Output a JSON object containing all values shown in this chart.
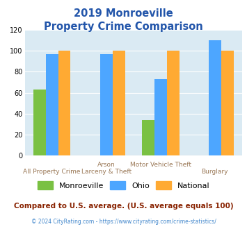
{
  "title_line1": "2019 Monroeville",
  "title_line2": "Property Crime Comparison",
  "category_labels_top": [
    "",
    "Arson",
    "Motor Vehicle Theft",
    ""
  ],
  "category_labels_bottom": [
    "All Property Crime",
    "Larceny & Theft",
    "",
    "Burglary"
  ],
  "monroeville": [
    63,
    0,
    34,
    0
  ],
  "ohio": [
    97,
    97,
    73,
    110
  ],
  "national": [
    100,
    100,
    100,
    100
  ],
  "monroeville_color": "#7ac143",
  "ohio_color": "#4da6ff",
  "national_color": "#ffaa33",
  "bg_color": "#daeaf3",
  "ylim": [
    0,
    120
  ],
  "yticks": [
    0,
    20,
    40,
    60,
    80,
    100,
    120
  ],
  "legend_labels": [
    "Monroeville",
    "Ohio",
    "National"
  ],
  "footer_line1": "Compared to U.S. average. (U.S. average equals 100)",
  "footer_line2": "© 2024 CityRating.com - https://www.cityrating.com/crime-statistics/",
  "title_color": "#2255aa",
  "xlabel_color": "#997755",
  "footer1_color": "#882200",
  "footer2_color": "#4488cc"
}
